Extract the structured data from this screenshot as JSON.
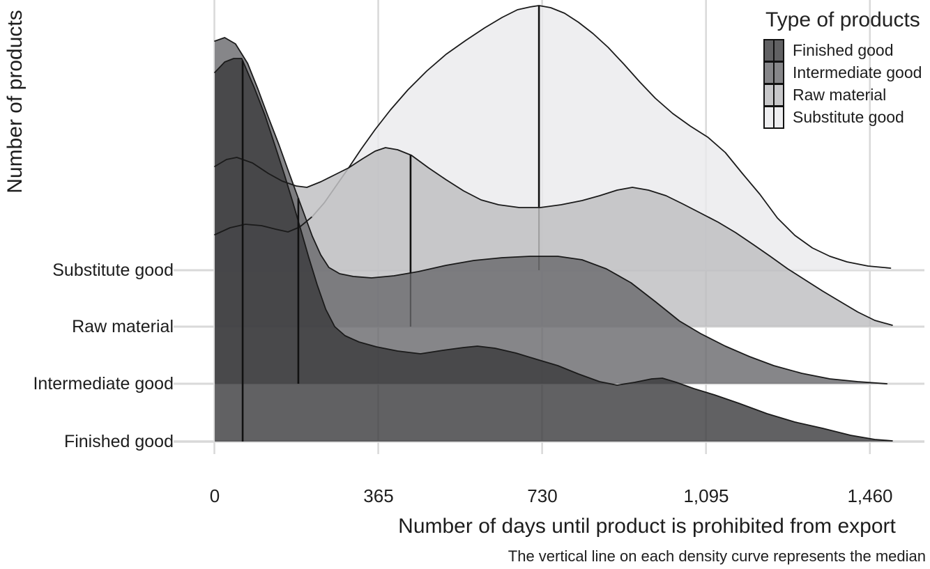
{
  "y_axis": {
    "title": "Number of products",
    "categories": [
      "Substitute good",
      "Raw material",
      "Intermediate good",
      "Finished good"
    ]
  },
  "x_axis": {
    "title": "Number of days until product is prohibited from export",
    "tick_labels": [
      "0",
      "365",
      "730",
      "1,095",
      "1,460"
    ],
    "tick_values": [
      0,
      365,
      730,
      1095,
      1460
    ]
  },
  "caption": "The vertical line on each density curve represents the median",
  "legend": {
    "title": "Type of products",
    "items": [
      {
        "label": "Finished good",
        "fill": "#616163"
      },
      {
        "label": "Intermediate good",
        "fill": "#868689"
      },
      {
        "label": "Raw material",
        "fill": "#c7c7c9"
      },
      {
        "label": "Substitute good",
        "fill": "#eeeef0"
      }
    ]
  },
  "chart_data": {
    "type": "area",
    "subtype": "ridgeline-density",
    "title": "",
    "xlabel": "Number of days until product is prohibited from export",
    "ylabel": "Number of products",
    "xlim": [
      0,
      1460
    ],
    "grid": true,
    "legend_position": "top-right",
    "note": "Overlapping density ridges per product type; vertical line on each curve = median (days)",
    "series": [
      {
        "name": "Substitute good",
        "row": 1,
        "median_days": 723,
        "fill": "rgba(234,234,236,0.8)",
        "points": [
          [
            1,
            51
          ],
          [
            35,
            61
          ],
          [
            69,
            66
          ],
          [
            105,
            64
          ],
          [
            136,
            59
          ],
          [
            164,
            55
          ],
          [
            190,
            62
          ],
          [
            218,
            77
          ],
          [
            245,
            97
          ],
          [
            271,
            121
          ],
          [
            299,
            147
          ],
          [
            327,
            174
          ],
          [
            358,
            202
          ],
          [
            392,
            230
          ],
          [
            431,
            259
          ],
          [
            473,
            286
          ],
          [
            516,
            310
          ],
          [
            560,
            330
          ],
          [
            602,
            348
          ],
          [
            641,
            363
          ],
          [
            675,
            374
          ],
          [
            703,
            378
          ],
          [
            723,
            380
          ],
          [
            749,
            377
          ],
          [
            780,
            369
          ],
          [
            811,
            356
          ],
          [
            843,
            340
          ],
          [
            877,
            320
          ],
          [
            912,
            296
          ],
          [
            948,
            270
          ],
          [
            982,
            247
          ],
          [
            1021,
            225
          ],
          [
            1060,
            207
          ],
          [
            1099,
            191
          ],
          [
            1138,
            169
          ],
          [
            1176,
            139
          ],
          [
            1215,
            109
          ],
          [
            1254,
            75
          ],
          [
            1293,
            50
          ],
          [
            1332,
            32
          ],
          [
            1371,
            20
          ],
          [
            1409,
            12
          ],
          [
            1456,
            6
          ],
          [
            1506,
            3
          ]
        ]
      },
      {
        "name": "Raw material",
        "row": 2,
        "median_days": 437,
        "fill": "rgba(189,189,191,0.8)",
        "points": [
          [
            1,
            230
          ],
          [
            27,
            240
          ],
          [
            50,
            243
          ],
          [
            85,
            235
          ],
          [
            120,
            220
          ],
          [
            151,
            209
          ],
          [
            182,
            202
          ],
          [
            206,
            200
          ],
          [
            237,
            208
          ],
          [
            268,
            218
          ],
          [
            299,
            228
          ],
          [
            330,
            241
          ],
          [
            358,
            252
          ],
          [
            381,
            257
          ],
          [
            408,
            254
          ],
          [
            439,
            246
          ],
          [
            477,
            228
          ],
          [
            516,
            211
          ],
          [
            555,
            195
          ],
          [
            594,
            182
          ],
          [
            633,
            175
          ],
          [
            679,
            171
          ],
          [
            726,
            171
          ],
          [
            772,
            175
          ],
          [
            819,
            181
          ],
          [
            858,
            188
          ],
          [
            897,
            196
          ],
          [
            931,
            200
          ],
          [
            967,
            196
          ],
          [
            1006,
            188
          ],
          [
            1044,
            176
          ],
          [
            1083,
            163
          ],
          [
            1122,
            150
          ],
          [
            1161,
            135
          ],
          [
            1200,
            118
          ],
          [
            1238,
            101
          ],
          [
            1277,
            83
          ],
          [
            1316,
            67
          ],
          [
            1355,
            51
          ],
          [
            1394,
            36
          ],
          [
            1433,
            21
          ],
          [
            1471,
            9
          ],
          [
            1510,
            2
          ]
        ]
      },
      {
        "name": "Intermediate good",
        "row": 3,
        "median_days": 187,
        "fill": "rgba(104,104,107,0.8)",
        "points": [
          [
            1,
            492
          ],
          [
            23,
            497
          ],
          [
            47,
            488
          ],
          [
            74,
            460
          ],
          [
            97,
            423
          ],
          [
            120,
            383
          ],
          [
            144,
            343
          ],
          [
            164,
            307
          ],
          [
            182,
            275
          ],
          [
            201,
            242
          ],
          [
            218,
            212
          ],
          [
            237,
            185
          ],
          [
            255,
            167
          ],
          [
            279,
            158
          ],
          [
            310,
            154
          ],
          [
            350,
            152
          ],
          [
            400,
            155
          ],
          [
            454,
            161
          ],
          [
            516,
            170
          ],
          [
            578,
            177
          ],
          [
            641,
            181
          ],
          [
            703,
            183
          ],
          [
            765,
            183
          ],
          [
            819,
            178
          ],
          [
            873,
            165
          ],
          [
            928,
            145
          ],
          [
            982,
            118
          ],
          [
            1036,
            90
          ],
          [
            1083,
            72
          ],
          [
            1138,
            54
          ],
          [
            1192,
            39
          ],
          [
            1246,
            26
          ],
          [
            1308,
            15
          ],
          [
            1371,
            7
          ],
          [
            1433,
            3
          ],
          [
            1498,
            0
          ]
        ]
      },
      {
        "name": "Finished good",
        "row": 4,
        "median_days": 63,
        "fill": "rgba(58,58,60,0.8)",
        "points": [
          [
            1,
            530
          ],
          [
            23,
            545
          ],
          [
            43,
            550
          ],
          [
            61,
            550
          ],
          [
            89,
            508
          ],
          [
            113,
            468
          ],
          [
            136,
            423
          ],
          [
            156,
            383
          ],
          [
            175,
            343
          ],
          [
            193,
            303
          ],
          [
            210,
            265
          ],
          [
            229,
            225
          ],
          [
            248,
            190
          ],
          [
            268,
            165
          ],
          [
            291,
            152
          ],
          [
            322,
            143
          ],
          [
            361,
            136
          ],
          [
            408,
            130
          ],
          [
            459,
            126
          ],
          [
            509,
            131
          ],
          [
            555,
            135
          ],
          [
            586,
            137
          ],
          [
            625,
            134
          ],
          [
            672,
            127
          ],
          [
            718,
            118
          ],
          [
            765,
            109
          ],
          [
            811,
            97
          ],
          [
            858,
            86
          ],
          [
            897,
            81
          ],
          [
            936,
            85
          ],
          [
            974,
            90
          ],
          [
            998,
            91
          ],
          [
            1029,
            85
          ],
          [
            1068,
            76
          ],
          [
            1114,
            67
          ],
          [
            1168,
            55
          ],
          [
            1231,
            40
          ],
          [
            1293,
            28
          ],
          [
            1355,
            19
          ],
          [
            1417,
            9
          ],
          [
            1471,
            3
          ],
          [
            1510,
            1
          ]
        ]
      }
    ]
  }
}
